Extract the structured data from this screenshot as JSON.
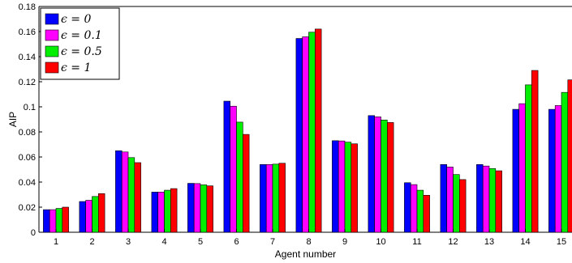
{
  "chart_data": {
    "type": "bar",
    "xlabel": "Agent number",
    "ylabel": "AIP",
    "ylim": [
      0,
      0.18
    ],
    "yticks": [
      "0",
      "0.02",
      "0.04",
      "0.06",
      "0.08",
      "0.1",
      "0.12",
      "0.14",
      "0.16",
      "0.18"
    ],
    "categories": [
      "1",
      "2",
      "3",
      "4",
      "5",
      "6",
      "7",
      "8",
      "9",
      "10",
      "11",
      "12",
      "13",
      "14",
      "15"
    ],
    "legend_position": "top-left",
    "grid": false,
    "series": [
      {
        "name": "ϵ = 0",
        "color": "#0000ff",
        "values": [
          0.018,
          0.0245,
          0.065,
          0.032,
          0.039,
          0.1045,
          0.054,
          0.1545,
          0.073,
          0.093,
          0.0395,
          0.054,
          0.054,
          0.098,
          0.098
        ]
      },
      {
        "name": "ϵ = 0.1",
        "color": "#ff00ff",
        "values": [
          0.018,
          0.0255,
          0.064,
          0.032,
          0.0388,
          0.1005,
          0.054,
          0.1558,
          0.0728,
          0.092,
          0.038,
          0.052,
          0.0528,
          0.1025,
          0.101
        ]
      },
      {
        "name": "ϵ = 0.5",
        "color": "#00ee00",
        "values": [
          0.019,
          0.0285,
          0.0595,
          0.0335,
          0.0378,
          0.0878,
          0.0543,
          0.1595,
          0.0718,
          0.0895,
          0.0335,
          0.046,
          0.0508,
          0.1175,
          0.1115
        ]
      },
      {
        "name": "ϵ = 1",
        "color": "#ff0000",
        "values": [
          0.02,
          0.0308,
          0.0555,
          0.0348,
          0.037,
          0.078,
          0.055,
          0.162,
          0.0705,
          0.0875,
          0.0295,
          0.042,
          0.049,
          0.129,
          0.1215
        ]
      }
    ]
  }
}
